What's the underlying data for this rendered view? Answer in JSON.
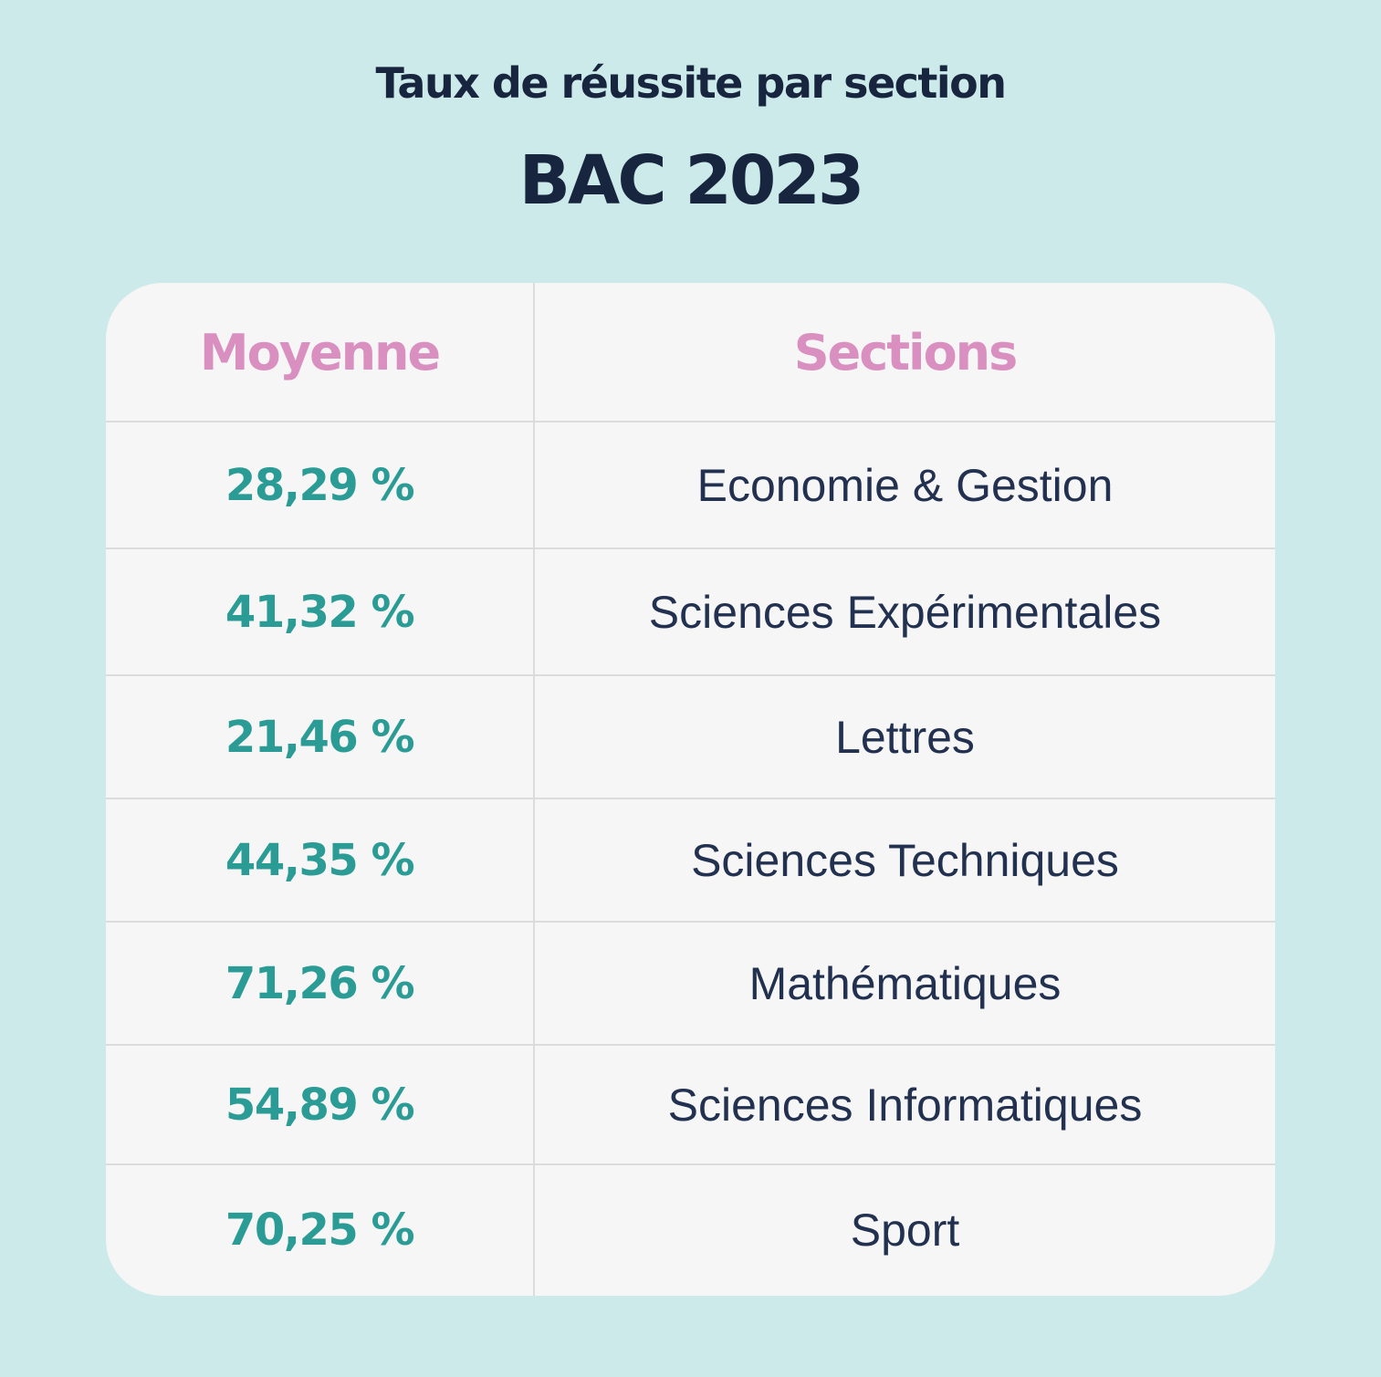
{
  "header": {
    "title": "Taux de réussite par section",
    "subtitle": "BAC 2023"
  },
  "chart_data": {
    "type": "table",
    "title": "Taux de réussite par section",
    "subtitle": "BAC 2023",
    "columns": [
      "Moyenne",
      "Sections"
    ],
    "rows": [
      {
        "moyenne": "28,29 %",
        "section": "Economie & Gestion"
      },
      {
        "moyenne": "41,32 %",
        "section": "Sciences Expérimentales"
      },
      {
        "moyenne": "21,46 %",
        "section": "Lettres"
      },
      {
        "moyenne": "44,35 %",
        "section": "Sciences Techniques"
      },
      {
        "moyenne": "71,26 %",
        "section": "Mathématiques"
      },
      {
        "moyenne": "54,89 %",
        "section": "Sciences Informatiques"
      },
      {
        "moyenne": "70,25 %",
        "section": "Sport"
      }
    ]
  },
  "colors": {
    "background": "#cdeaea",
    "card": "#f6f6f6",
    "title": "#18253f",
    "header_text": "#d98fbf",
    "value_text": "#2b9c95",
    "section_text": "#22314f",
    "divider": "#dcdcdc"
  }
}
